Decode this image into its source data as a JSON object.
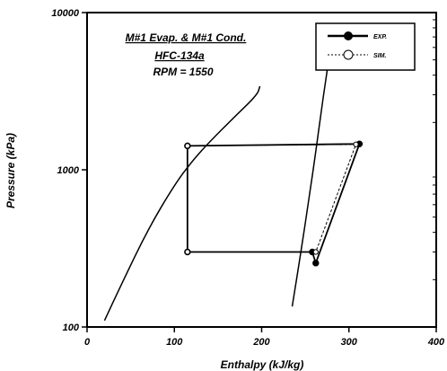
{
  "chart_data": {
    "type": "line",
    "xlabel": "Enthalpy (kJ/kg)",
    "ylabel": "Pressure (kPa)",
    "xlim": [
      0,
      400
    ],
    "ylim": [
      100,
      10000
    ],
    "yscale": "log",
    "x_ticks": [
      "0",
      "100",
      "200",
      "300",
      "400"
    ],
    "y_ticks": [
      "100",
      "1000",
      "10000"
    ],
    "annotations": [
      "M#1 Evap. & M#1 Cond.",
      "HFC-134a",
      "RPM = 1550"
    ],
    "legend_position": "top-right",
    "grid": false,
    "saturation_dome": {
      "liquid_line": [
        [
          20,
          110
        ],
        [
          40,
          190
        ],
        [
          70,
          420
        ],
        [
          100,
          800
        ],
        [
          120,
          1130
        ],
        [
          140,
          1500
        ],
        [
          170,
          2200
        ],
        [
          195,
          3000
        ],
        [
          198,
          3400
        ]
      ],
      "vapor_line": [
        [
          235,
          135
        ],
        [
          245,
          300
        ],
        [
          255,
          700
        ],
        [
          262,
          1300
        ],
        [
          268,
          2300
        ],
        [
          273,
          3600
        ],
        [
          279,
          6000
        ]
      ]
    },
    "series": [
      {
        "name": "EXP.",
        "marker": "filled-circle",
        "color": "#000000",
        "points": [
          [
            115,
            1420
          ],
          [
            312,
            1460
          ],
          [
            262,
            255
          ],
          [
            258,
            300
          ],
          [
            115,
            300
          ],
          [
            115,
            1420
          ]
        ]
      },
      {
        "name": "SIM.",
        "marker": "open-circle",
        "color": "#000000",
        "points": [
          [
            115,
            1420
          ],
          [
            308,
            1450
          ],
          [
            262,
            300
          ],
          [
            115,
            300
          ],
          [
            115,
            1420
          ]
        ]
      }
    ]
  }
}
